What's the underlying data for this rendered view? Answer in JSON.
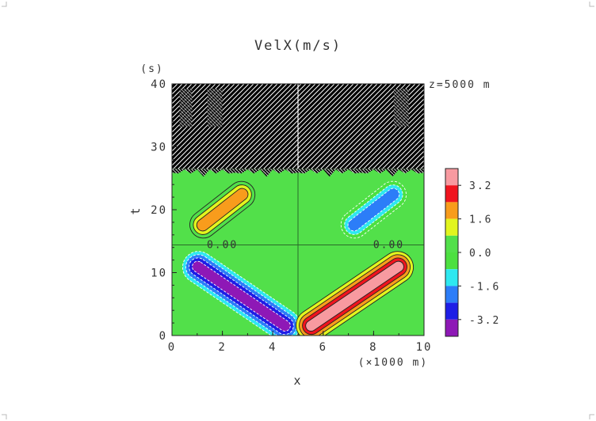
{
  "chart_data": {
    "type": "heatmap",
    "title": "VelX(m/s)",
    "xlabel": "x",
    "xunit": "(×1000 m)",
    "ylabel": "t",
    "yunit": "(s)",
    "annotation": "z=5000 m",
    "xlim": [
      0,
      10
    ],
    "ylim": [
      0,
      40
    ],
    "x_ticks": [
      "0",
      "2",
      "4",
      "6",
      "8",
      "10"
    ],
    "y_ticks": [
      "0",
      "10",
      "20",
      "30",
      "40"
    ],
    "contour_labels": [
      {
        "text": "0.00",
        "x": 2.0,
        "t": 14.4
      },
      {
        "text": "0.00",
        "x": 8.6,
        "t": 14.4
      }
    ],
    "colorbar": {
      "tick_labels": [
        "3.2",
        "1.6",
        "0.0",
        "-1.6",
        "-3.2"
      ],
      "tick_values": [
        3.2,
        1.6,
        0.0,
        -1.6,
        -3.2
      ],
      "levels": [
        {
          "min": 3.2,
          "max": 4.0,
          "color": "#f89aa0"
        },
        {
          "min": 2.4,
          "max": 3.2,
          "color": "#f0141e"
        },
        {
          "min": 1.6,
          "max": 2.4,
          "color": "#f89c1c"
        },
        {
          "min": 0.8,
          "max": 1.6,
          "color": "#e2f51e"
        },
        {
          "min": 0.0,
          "max": 0.8,
          "color": "#52e04a"
        },
        {
          "min": -0.8,
          "max": 0.0,
          "color": "#4ce040"
        },
        {
          "min": -1.6,
          "max": -0.8,
          "color": "#2ee8f0"
        },
        {
          "min": -2.4,
          "max": -1.6,
          "color": "#2c7df8"
        },
        {
          "min": -3.2,
          "max": -2.4,
          "color": "#1e1ee6"
        },
        {
          "min": -4.0,
          "max": -3.2,
          "color": "#8e18b6"
        }
      ]
    },
    "features": [
      {
        "name": "positive-lobe-upper",
        "x0": 1.2,
        "t0": 17.5,
        "x1": 2.8,
        "t1": 22.5,
        "peak": 2.0
      },
      {
        "name": "negative-lobe-upper",
        "x0": 7.2,
        "t0": 17.5,
        "x1": 8.8,
        "t1": 22.5,
        "peak": -2.0
      },
      {
        "name": "negative-lobe-lower",
        "x0": 1.0,
        "t0": 11.0,
        "x1": 4.5,
        "t1": 1.5,
        "peak": -3.4
      },
      {
        "name": "positive-lobe-lower",
        "x0": 5.5,
        "t0": 1.5,
        "x1": 9.0,
        "t1": 11.0,
        "peak": 3.4
      }
    ],
    "noise_region": {
      "t_min": 26.5,
      "t_max": 40
    }
  }
}
